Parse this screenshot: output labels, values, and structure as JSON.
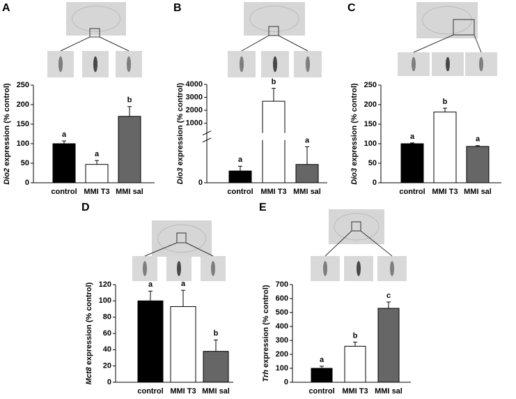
{
  "chart_data": [
    {
      "type": "bar",
      "panel_label": "A",
      "y_label_gene": "Dio2",
      "y_label": "expression (% control)",
      "categories": [
        "control",
        "MMI T3",
        "MMI sal"
      ],
      "values": [
        100,
        47,
        170
      ],
      "errors": [
        7,
        10,
        25
      ],
      "annotations": [
        "a",
        "a",
        "b"
      ],
      "colors": [
        "#000000",
        "#ffffff",
        "#666666"
      ],
      "ylim": [
        0,
        250
      ],
      "yticks": [
        0,
        50,
        100,
        150,
        200,
        250
      ]
    },
    {
      "type": "bar",
      "panel_label": "B",
      "y_label_gene": "Dio3",
      "y_label": "expression (% control)",
      "categories": [
        "control",
        "MMI T3",
        "MMI sal"
      ],
      "values": [
        100,
        2700,
        155
      ],
      "errors": [
        40,
        1000,
        150
      ],
      "annotations": [
        "a",
        "b",
        "a"
      ],
      "colors": [
        "#000000",
        "#ffffff",
        "#666666"
      ],
      "ylim": [
        0,
        4000
      ],
      "yticks": [
        0,
        1000,
        2000,
        3000,
        4000
      ],
      "axis_break": 350
    },
    {
      "type": "bar",
      "panel_label": "C",
      "y_label_gene": "Dio3",
      "y_label": "expression (% control)",
      "categories": [
        "control",
        "MMI T3",
        "MMI sal"
      ],
      "values": [
        100,
        181,
        93
      ],
      "errors": [
        2,
        10,
        2
      ],
      "annotations": [
        "a",
        "b",
        "a"
      ],
      "colors": [
        "#000000",
        "#ffffff",
        "#666666"
      ],
      "ylim": [
        0,
        250
      ],
      "yticks": [
        0,
        50,
        100,
        150,
        200,
        250
      ]
    },
    {
      "type": "bar",
      "panel_label": "D",
      "y_label_gene": "Mct8",
      "y_label": "expression (% control)",
      "categories": [
        "control",
        "MMI T3",
        "MMI sal"
      ],
      "values": [
        100,
        93,
        38
      ],
      "errors": [
        12,
        20,
        14
      ],
      "annotations": [
        "a",
        "a",
        "b"
      ],
      "colors": [
        "#000000",
        "#ffffff",
        "#666666"
      ],
      "ylim": [
        0,
        120
      ],
      "yticks": [
        0,
        20,
        40,
        60,
        80,
        100,
        120
      ]
    },
    {
      "type": "bar",
      "panel_label": "E",
      "y_label_gene": "Trh",
      "y_label": "expression (% control)",
      "categories": [
        "control",
        "MMI T3",
        "MMI sal"
      ],
      "values": [
        100,
        258,
        530
      ],
      "errors": [
        15,
        30,
        45
      ],
      "annotations": [
        "a",
        "b",
        "c"
      ],
      "colors": [
        "#000000",
        "#ffffff",
        "#666666"
      ],
      "ylim": [
        0,
        700
      ],
      "yticks": [
        0,
        100,
        200,
        300,
        400,
        500,
        600,
        700
      ]
    }
  ]
}
